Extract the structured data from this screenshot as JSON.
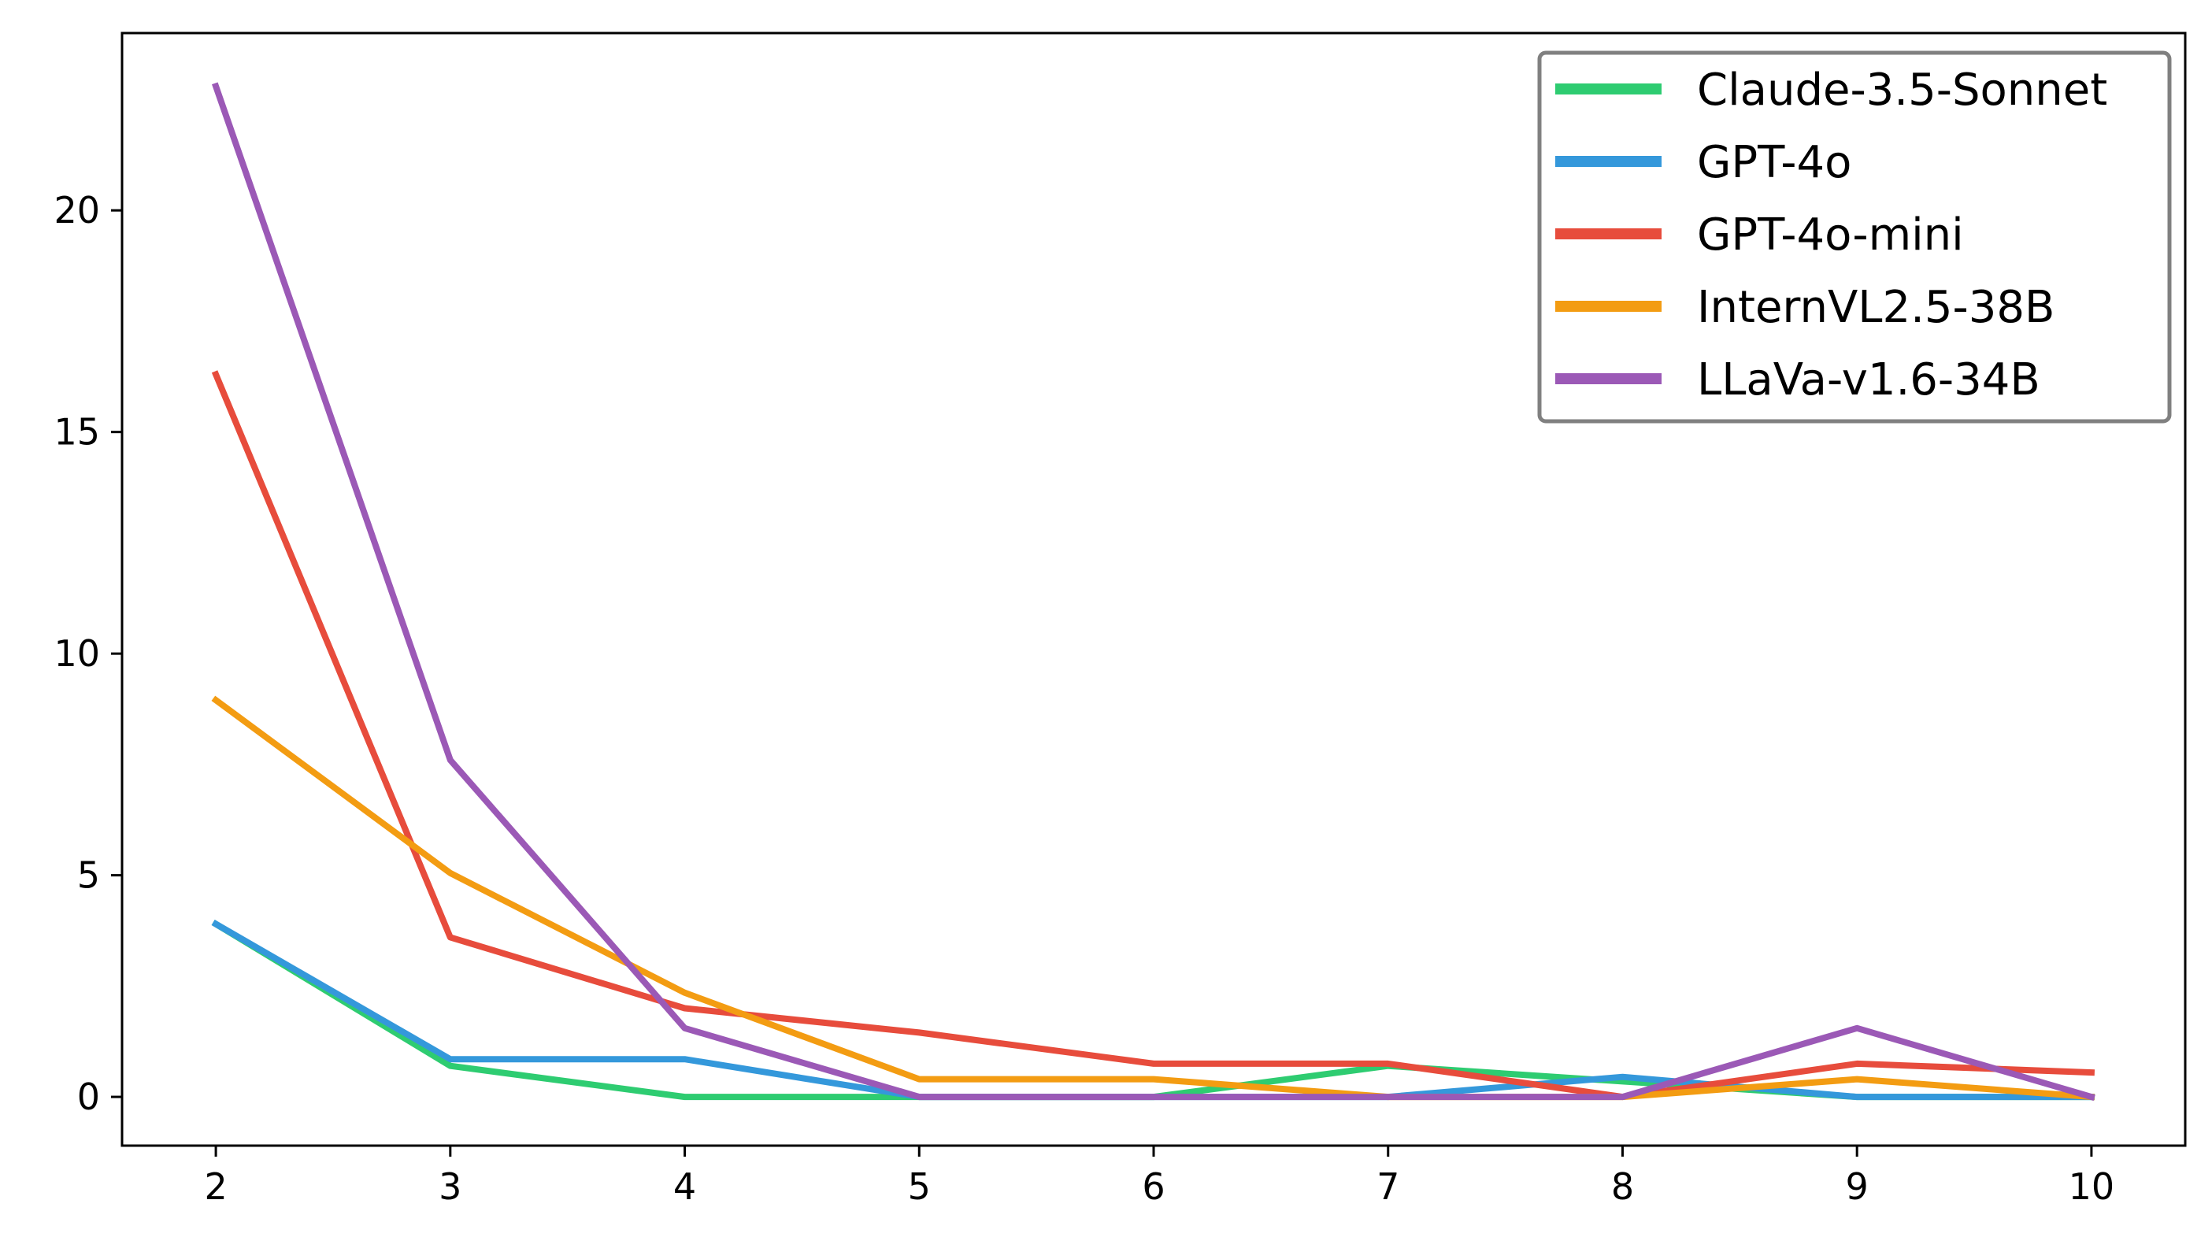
{
  "chart_data": {
    "type": "line",
    "title": "",
    "xlabel": "",
    "ylabel": "",
    "x": [
      2,
      3,
      4,
      5,
      6,
      7,
      8,
      9,
      10
    ],
    "xticks": [
      "2",
      "3",
      "4",
      "5",
      "6",
      "7",
      "8",
      "9",
      "10"
    ],
    "yticks": [
      "0",
      "5",
      "10",
      "15",
      "20"
    ],
    "xlim": [
      1.6,
      10.4
    ],
    "ylim": [
      -1.1,
      24.0
    ],
    "grid": false,
    "legend_position": "top-right",
    "series": [
      {
        "name": "Claude-3.5-Sonnet",
        "color": "#2ecc71",
        "values": [
          3.9,
          0.7,
          0.0,
          0.0,
          0.0,
          0.7,
          0.35,
          0.0,
          0.0
        ]
      },
      {
        "name": "GPT-4o",
        "color": "#3498db",
        "values": [
          3.9,
          0.85,
          0.85,
          0.0,
          0.0,
          0.0,
          0.45,
          0.0,
          0.0
        ]
      },
      {
        "name": "GPT-4o-mini",
        "color": "#e74c3c",
        "values": [
          16.3,
          3.6,
          2.0,
          1.45,
          0.75,
          0.75,
          0.0,
          0.75,
          0.55
        ]
      },
      {
        "name": "InternVL2.5-38B",
        "color": "#f39c12",
        "values": [
          8.95,
          5.05,
          2.35,
          0.4,
          0.4,
          0.0,
          0.0,
          0.4,
          0.0
        ]
      },
      {
        "name": "LLaVa-v1.6-34B",
        "color": "#9b59b6",
        "values": [
          22.8,
          7.6,
          1.55,
          0.0,
          0.0,
          0.0,
          0.0,
          1.55,
          0.0
        ]
      }
    ]
  }
}
